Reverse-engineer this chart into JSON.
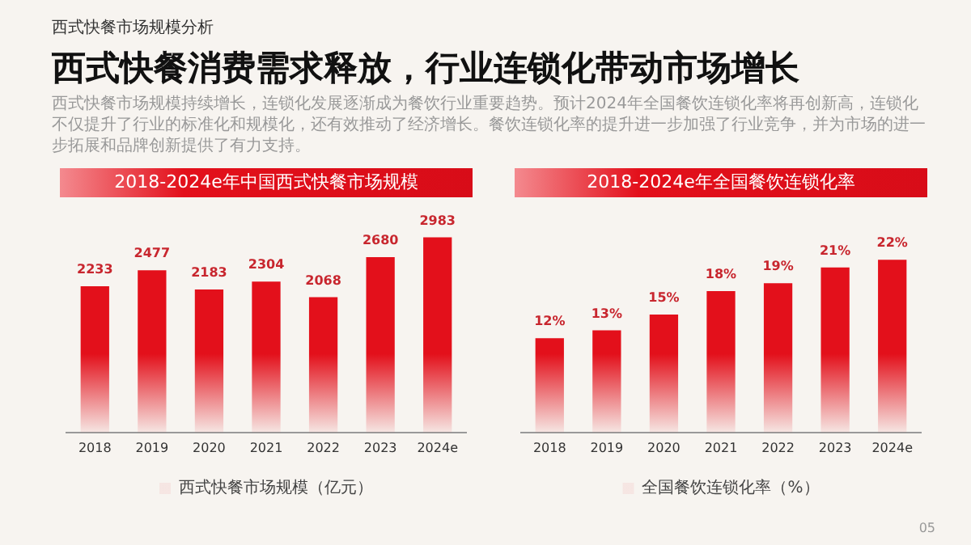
{
  "chart_data": [
    {
      "type": "bar",
      "title": "2018-2024e年中国西式快餐市场规模",
      "categories": [
        "2018",
        "2019",
        "2020",
        "2021",
        "2022",
        "2023",
        "2024e"
      ],
      "series": [
        {
          "name": "西式快餐市场规模（亿元）",
          "color": "#e3101b",
          "values": [
            2233,
            2477,
            2183,
            2304,
            2068,
            2680,
            2983
          ]
        }
      ],
      "data_labels": true,
      "legend": "bottom",
      "grid": false,
      "annotations": [
        "西式快餐市场规模分析",
        "西式快餐消费需求释放，行业连锁化带动市场增长",
        "西式快餐市场规模持续增长，连锁化发展逐渐成为餐饮行业重要趋势。预计2024年全国餐饮连锁化率将再创新高，连锁化不仅提升了行业的标准化和规模化，还有效推动了经济增长。餐饮连锁化率的提升进一步加强了行业竞争，并为市场的进一步拓展和品牌创新提供了有力支持。"
      ]
    },
    {
      "type": "bar",
      "title": "2018-2024e年全国餐饮连锁化率",
      "categories": [
        "2018",
        "2019",
        "2020",
        "2021",
        "2022",
        "2023",
        "2024e"
      ],
      "series": [
        {
          "name": "全国餐饮连锁化率（%）",
          "color": "#e3101b",
          "values": [
            12,
            13,
            15,
            18,
            19,
            21,
            22
          ],
          "value_labels": [
            "12%",
            "13%",
            "15%",
            "18%",
            "19%",
            "21%",
            "22%"
          ]
        }
      ],
      "legend": "bottom",
      "grid": false,
      "annotations": [
        "05"
      ]
    }
  ]
}
